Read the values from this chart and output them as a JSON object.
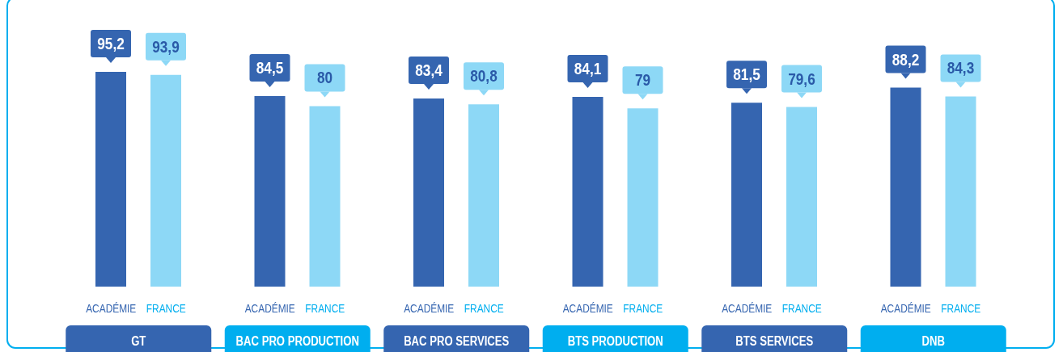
{
  "chart_data": {
    "type": "bar",
    "categories": [
      "GT",
      "BAC PRO PRODUCTION",
      "BAC PRO SERVICES",
      "BTS PRODUCTION",
      "BTS SERVICES",
      "DNB"
    ],
    "series": [
      {
        "name": "ACADÉMIE",
        "color": "#3565b0",
        "values": [
          95.2,
          84.5,
          83.4,
          84.1,
          81.5,
          88.2
        ],
        "value_labels": [
          "95,2",
          "84,5",
          "83,4",
          "84,1",
          "81,5",
          "88,2"
        ]
      },
      {
        "name": "FRANCE",
        "color": "#8dd8f6",
        "values": [
          93.9,
          80,
          80.8,
          79,
          79.6,
          84.3
        ],
        "value_labels": [
          "93,9",
          "80",
          "80,8",
          "79",
          "79,6",
          "84,3"
        ]
      }
    ]
  }
}
